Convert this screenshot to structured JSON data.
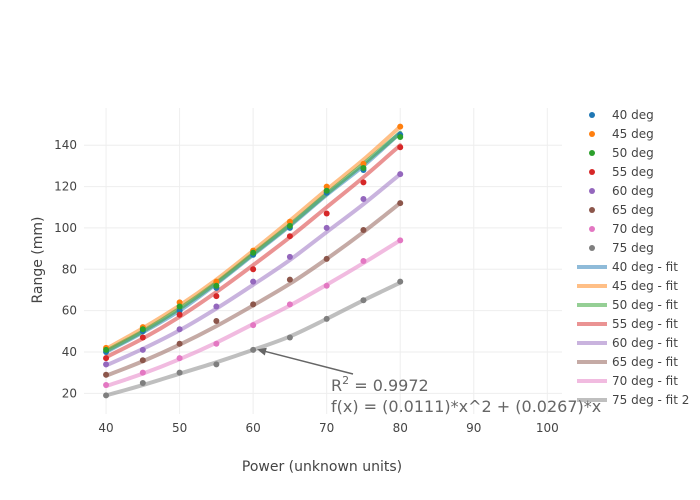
{
  "chart_data": {
    "type": "scatter",
    "xlabel": "Power (unknown units)",
    "ylabel": "Range (mm)",
    "xlim": [
      37,
      102
    ],
    "ylim": [
      10,
      158
    ],
    "xticks": [
      40,
      50,
      60,
      70,
      80,
      90,
      100
    ],
    "yticks": [
      20,
      40,
      60,
      80,
      100,
      120,
      140
    ],
    "grid": true,
    "legend_position": "right",
    "x": [
      40,
      45,
      50,
      55,
      60,
      65,
      70,
      75,
      80
    ],
    "series": [
      {
        "name": "40 deg",
        "color": "#1f77b4",
        "y": [
          40,
          50,
          60,
          71,
          87,
          100,
          117,
          128,
          145
        ]
      },
      {
        "name": "45 deg",
        "color": "#ff7f0e",
        "y": [
          42,
          52,
          64,
          74,
          89,
          103,
          120,
          131,
          149
        ]
      },
      {
        "name": "50 deg",
        "color": "#2ca02c",
        "y": [
          41,
          51,
          62,
          72,
          88,
          101,
          118,
          129,
          144
        ]
      },
      {
        "name": "55 deg",
        "color": "#d62728",
        "y": [
          37,
          47,
          58,
          67,
          80,
          96,
          107,
          122,
          139
        ]
      },
      {
        "name": "60 deg",
        "color": "#9467bd",
        "y": [
          34,
          41,
          51,
          62,
          74,
          86,
          100,
          114,
          126
        ]
      },
      {
        "name": "65 deg",
        "color": "#8c564b",
        "y": [
          29,
          36,
          44,
          55,
          63,
          75,
          85,
          99,
          112
        ]
      },
      {
        "name": "70 deg",
        "color": "#e377c2",
        "y": [
          24,
          30,
          37,
          44,
          53,
          63,
          72,
          84,
          94
        ]
      },
      {
        "name": "75 deg",
        "color": "#7f7f7f",
        "y": [
          19,
          25,
          30,
          34,
          41,
          47,
          56,
          65,
          74
        ]
      }
    ],
    "fits": [
      {
        "name": "40 deg - fit",
        "color": "#1f77b4",
        "y": [
          40,
          49.5,
          60,
          73,
          87,
          101,
          116,
          130,
          146
        ]
      },
      {
        "name": "45 deg - fit",
        "color": "#ff7f0e",
        "y": [
          41.5,
          51.5,
          62.5,
          75,
          89,
          103.5,
          118.5,
          133,
          149
        ]
      },
      {
        "name": "50 deg - fit",
        "color": "#2ca02c",
        "y": [
          40.5,
          50,
          61,
          73.5,
          87.5,
          101.5,
          116.5,
          131,
          146
        ]
      },
      {
        "name": "55 deg - fit",
        "color": "#d62728",
        "y": [
          37.5,
          46.5,
          57,
          69,
          82,
          95.5,
          110,
          124.5,
          140
        ]
      },
      {
        "name": "60 deg - fit",
        "color": "#9467bd",
        "y": [
          33.5,
          41.5,
          50.5,
          61,
          72.5,
          84.5,
          98,
          111.5,
          126
        ]
      },
      {
        "name": "65 deg - fit",
        "color": "#8c564b",
        "y": [
          28.5,
          35.5,
          43.5,
          52.5,
          62.5,
          73,
          85,
          98,
          112
        ]
      },
      {
        "name": "70 deg - fit",
        "color": "#e377c2",
        "y": [
          23.5,
          29.5,
          36.5,
          44.5,
          53.5,
          62.5,
          72.5,
          83,
          94
        ]
      },
      {
        "name": "75 deg - fit 2",
        "color": "#7f7f7f",
        "y": [
          19,
          24,
          29.5,
          35,
          41,
          47.5,
          56,
          65,
          73.5
        ]
      }
    ],
    "annotation": {
      "line1_base": "R",
      "line1_sup": "2",
      "line1_rest": " = 0.9972",
      "line2": "f(x) = (0.0111)*x^2 + (0.0267)*x",
      "arrow_target": {
        "x": 60,
        "y": 42
      }
    }
  }
}
